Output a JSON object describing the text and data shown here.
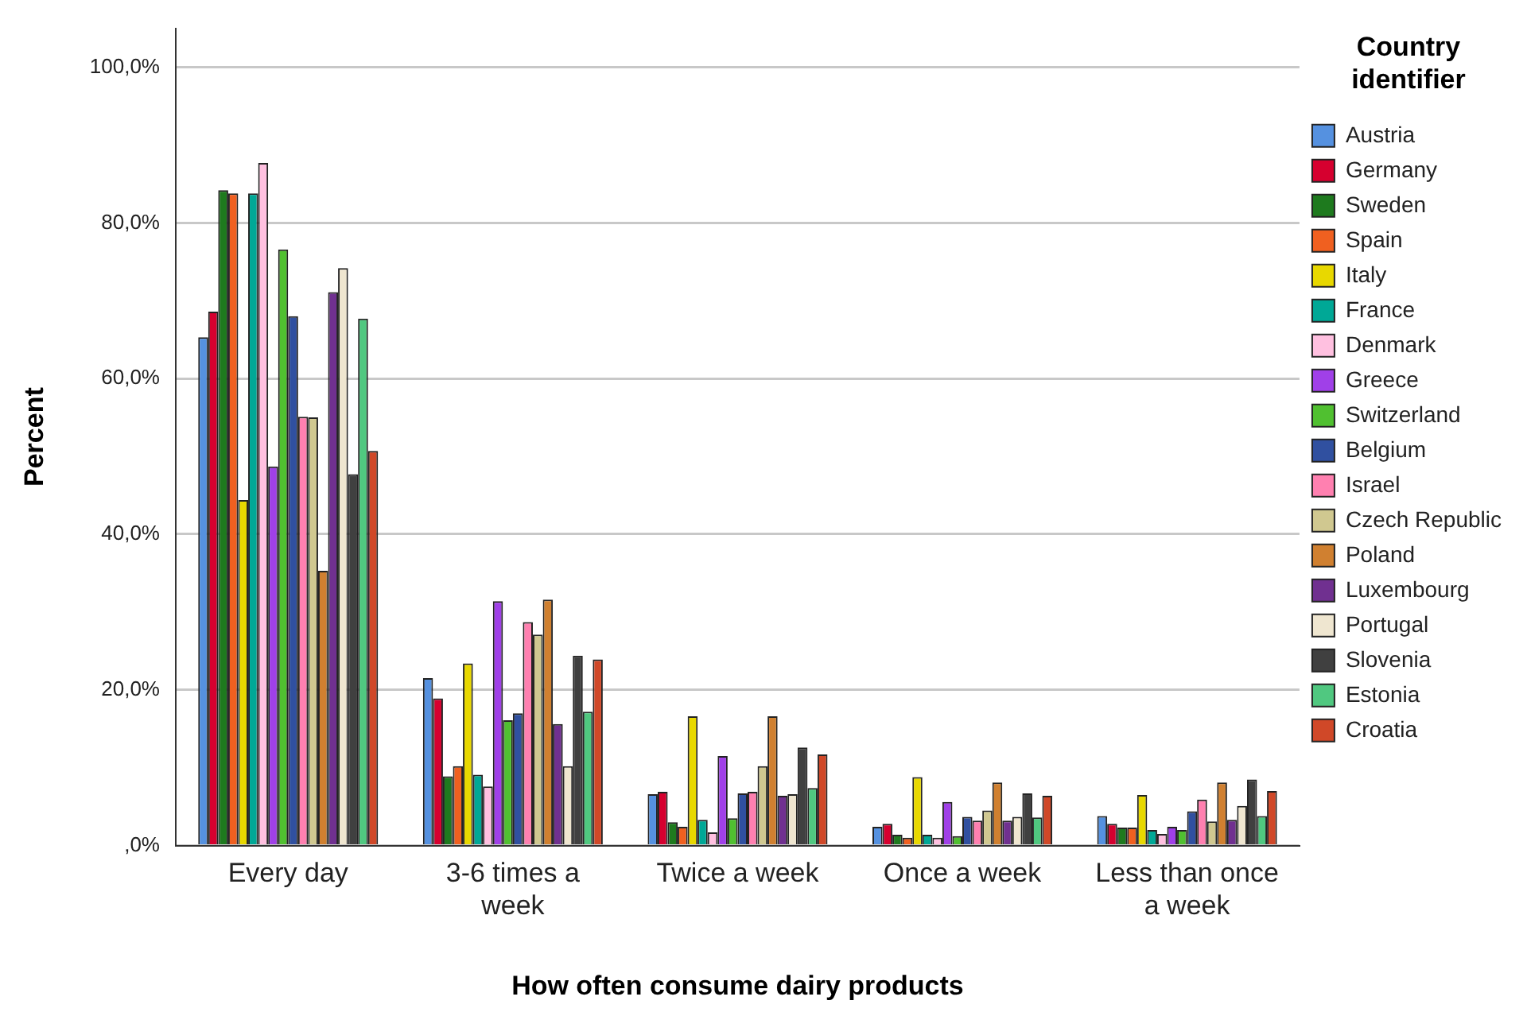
{
  "chart_data": {
    "type": "bar",
    "xlabel": "How often consume dairy products",
    "ylabel": "Percent",
    "legend_title": "Country identifier",
    "legend": "right",
    "grid": "y",
    "categories": [
      "Every day",
      "3-6 times a week",
      "Twice a week",
      "Once a week",
      "Less than once a week"
    ],
    "ylim": [
      0,
      105
    ],
    "yticks": [
      {
        "value": 0,
        "label": ",0%"
      },
      {
        "value": 20,
        "label": "20,0%"
      },
      {
        "value": 40,
        "label": "40,0%"
      },
      {
        "value": 60,
        "label": "60,0%"
      },
      {
        "value": 80,
        "label": "80,0%"
      },
      {
        "value": 100,
        "label": "100,0%"
      }
    ],
    "series": [
      {
        "name": "Austria",
        "color": "#5591e0",
        "values": [
          65.3,
          21.5,
          6.6,
          2.4,
          3.8
        ]
      },
      {
        "name": "Germany",
        "color": "#d6002f",
        "values": [
          68.6,
          18.9,
          6.9,
          2.8,
          2.8
        ]
      },
      {
        "name": "Sweden",
        "color": "#1e7a1e",
        "values": [
          84.2,
          8.9,
          3.0,
          1.4,
          2.3
        ]
      },
      {
        "name": "Spain",
        "color": "#f06020",
        "values": [
          83.8,
          10.2,
          2.4,
          1.0,
          2.3
        ]
      },
      {
        "name": "Italy",
        "color": "#e8d800",
        "values": [
          44.4,
          23.4,
          16.6,
          8.8,
          6.5
        ]
      },
      {
        "name": "France",
        "color": "#00a896",
        "values": [
          83.8,
          9.1,
          3.3,
          1.4,
          2.0
        ]
      },
      {
        "name": "Denmark",
        "color": "#ffc0e0",
        "values": [
          87.7,
          7.6,
          1.7,
          1.0,
          1.5
        ]
      },
      {
        "name": "Greece",
        "color": "#a040e8",
        "values": [
          48.7,
          31.4,
          11.5,
          5.6,
          2.4
        ]
      },
      {
        "name": "Switzerland",
        "color": "#50c030",
        "values": [
          76.6,
          16.1,
          3.5,
          1.2,
          2.0
        ]
      },
      {
        "name": "Belgium",
        "color": "#3050a0",
        "values": [
          68.0,
          17.0,
          6.7,
          3.7,
          4.4
        ]
      },
      {
        "name": "Israel",
        "color": "#ff80b0",
        "values": [
          55.1,
          28.7,
          6.9,
          3.2,
          5.9
        ]
      },
      {
        "name": "Czech Republic",
        "color": "#d0c890",
        "values": [
          55.0,
          27.1,
          10.2,
          4.5,
          3.1
        ]
      },
      {
        "name": "Poland",
        "color": "#d08030",
        "values": [
          35.3,
          31.6,
          16.6,
          8.1,
          8.1
        ]
      },
      {
        "name": "Luxembourg",
        "color": "#703090",
        "values": [
          71.1,
          15.6,
          6.4,
          3.2,
          3.3
        ]
      },
      {
        "name": "Portugal",
        "color": "#efe6d0",
        "values": [
          74.2,
          10.2,
          6.6,
          3.7,
          5.1
        ]
      },
      {
        "name": "Slovenia",
        "color": "#404040",
        "values": [
          47.7,
          24.4,
          12.6,
          6.7,
          8.5
        ]
      },
      {
        "name": "Estonia",
        "color": "#50c880",
        "values": [
          67.7,
          17.2,
          7.4,
          3.6,
          3.8
        ]
      },
      {
        "name": "Croatia",
        "color": "#d04828",
        "values": [
          50.7,
          23.9,
          11.7,
          6.4,
          7.0
        ]
      }
    ]
  }
}
